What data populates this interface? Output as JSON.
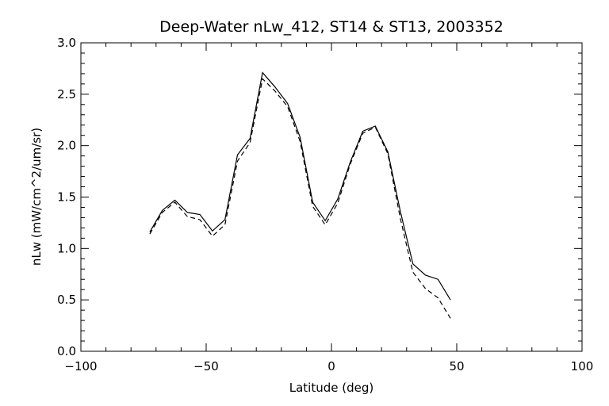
{
  "chart_data": {
    "type": "line",
    "title": "Deep-Water nLw_412, ST14 & ST13, 2003352",
    "xlabel": "Latitude (deg)",
    "ylabel": "nLw (mW/cm^2/um/sr)",
    "xlim": [
      -100,
      100
    ],
    "ylim": [
      0.0,
      3.0
    ],
    "x_ticks": [
      -100,
      -50,
      0,
      50,
      100
    ],
    "x_tick_labels": [
      "−100",
      "−50",
      "0",
      "50",
      "100"
    ],
    "y_ticks": [
      0.0,
      0.5,
      1.0,
      1.5,
      2.0,
      2.5,
      3.0
    ],
    "y_tick_labels": [
      "0.0",
      "0.5",
      "1.0",
      "1.5",
      "2.0",
      "2.5",
      "3.0"
    ],
    "grid": false,
    "series": [
      {
        "style": "solid",
        "x": [
          -72.5,
          -67.5,
          -62.5,
          -57.5,
          -52.5,
          -47.5,
          -42.5,
          -37.5,
          -32.5,
          -27.5,
          -22.5,
          -17.5,
          -12.5,
          -7.5,
          -2.5,
          2.5,
          7.5,
          12.5,
          17.5,
          22.5,
          27.5,
          32.5,
          37.5,
          42.5,
          47.5
        ],
        "y": [
          1.16,
          1.37,
          1.47,
          1.35,
          1.33,
          1.17,
          1.28,
          1.91,
          2.07,
          2.71,
          2.57,
          2.41,
          2.08,
          1.45,
          1.27,
          1.48,
          1.84,
          2.14,
          2.19,
          1.94,
          1.36,
          0.85,
          0.74,
          0.7,
          0.5
        ]
      },
      {
        "style": "dashed",
        "x": [
          -72.5,
          -67.5,
          -62.5,
          -57.5,
          -52.5,
          -47.5,
          -42.5,
          -37.5,
          -32.5,
          -27.5,
          -22.5,
          -17.5,
          -12.5,
          -7.5,
          -2.5,
          2.5,
          7.5,
          12.5,
          17.5,
          22.5,
          27.5,
          32.5,
          37.5,
          42.5,
          47.5
        ],
        "y": [
          1.14,
          1.35,
          1.45,
          1.31,
          1.28,
          1.12,
          1.23,
          1.85,
          2.03,
          2.65,
          2.53,
          2.38,
          2.04,
          1.41,
          1.23,
          1.44,
          1.82,
          2.12,
          2.18,
          1.92,
          1.29,
          0.77,
          0.61,
          0.52,
          0.32
        ]
      }
    ]
  }
}
